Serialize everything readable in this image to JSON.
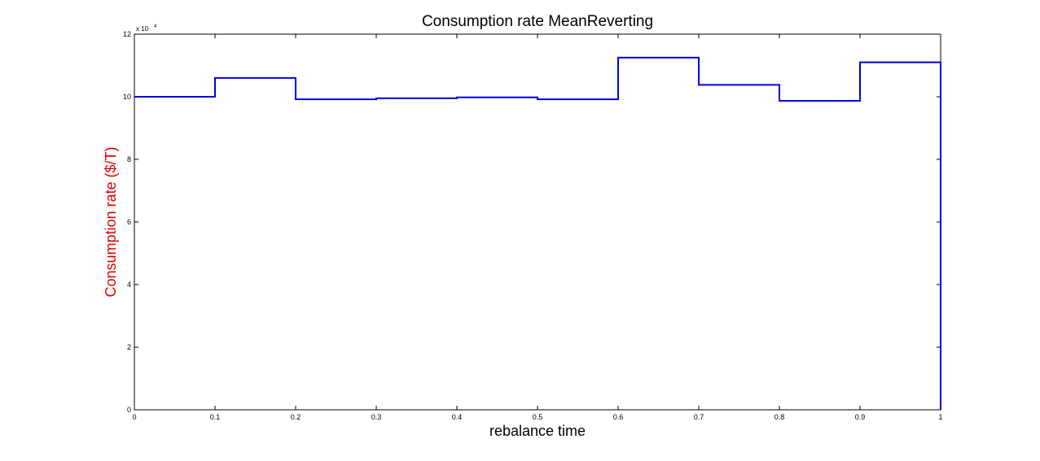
{
  "chart_data": {
    "type": "line",
    "style": "stairs",
    "title": "Consumption rate MeanReverting",
    "xlabel": "rebalance time",
    "ylabel": "Consumption rate ($/T)",
    "ylabel_color": "#e00000",
    "exponent_label": "x 10",
    "exponent_power": "4",
    "line_color": "#0000e0",
    "xlim": [
      0,
      1
    ],
    "ylim": [
      0,
      12
    ],
    "x_ticks": [
      0,
      0.1,
      0.2,
      0.3,
      0.4,
      0.5,
      0.6,
      0.7,
      0.8,
      0.9,
      1
    ],
    "x_tick_labels": [
      "0",
      "0.1",
      "0.2",
      "0.3",
      "0.4",
      "0.5",
      "0.6",
      "0.7",
      "0.8",
      "0.9",
      "1"
    ],
    "y_ticks": [
      0,
      2,
      4,
      6,
      8,
      10,
      12
    ],
    "y_tick_labels": [
      "0",
      "2",
      "4",
      "6",
      "8",
      "10",
      "12"
    ],
    "grid": false,
    "legend": "none",
    "series": [
      {
        "x": [
          0,
          0.1,
          0.2,
          0.3,
          0.4,
          0.5,
          0.6,
          0.7,
          0.8,
          0.9,
          1.0
        ],
        "values": [
          10.0,
          10.6,
          9.92,
          9.95,
          9.98,
          9.92,
          11.25,
          10.38,
          9.87,
          11.1,
          0
        ]
      }
    ]
  }
}
